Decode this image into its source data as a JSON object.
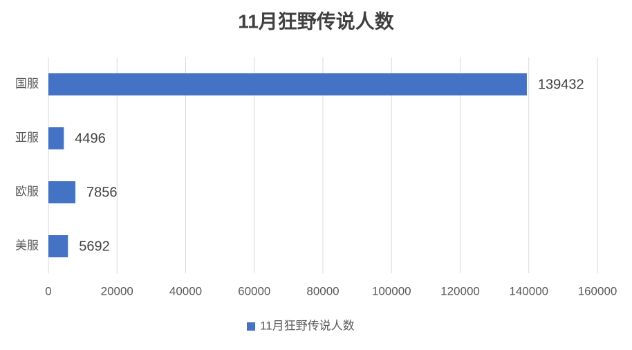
{
  "chart_data": {
    "type": "hbar",
    "title": "11月狂野传说人数",
    "categories": [
      "国服",
      "亚服",
      "欧服",
      "美服"
    ],
    "series": [
      {
        "name": "11月狂野传说人数",
        "color": "#4472c4",
        "values": [
          139432,
          4496,
          7856,
          5692
        ]
      }
    ],
    "xlim": [
      0,
      160000
    ],
    "xticks": [
      0,
      20000,
      40000,
      60000,
      80000,
      100000,
      120000,
      140000,
      160000
    ],
    "grid": true,
    "legend": "bottom"
  }
}
